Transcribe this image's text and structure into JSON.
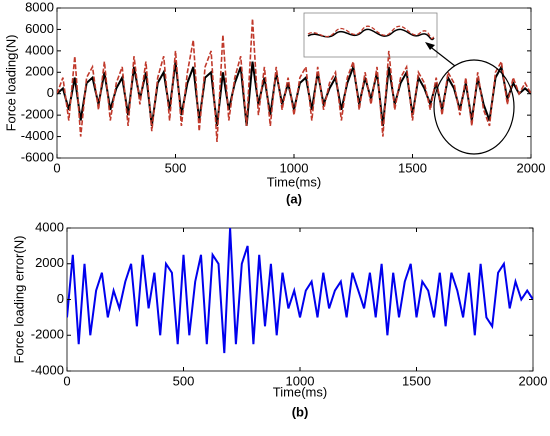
{
  "chart_data": [
    {
      "type": "line",
      "caption": "(a)",
      "xlabel": "Time(ms)",
      "ylabel": "Force loading(N)",
      "x": [
        0,
        25,
        50,
        75,
        100,
        125,
        150,
        175,
        200,
        225,
        250,
        275,
        300,
        325,
        350,
        375,
        400,
        425,
        450,
        475,
        500,
        525,
        550,
        575,
        600,
        625,
        650,
        675,
        700,
        725,
        750,
        775,
        800,
        825,
        850,
        875,
        900,
        925,
        950,
        975,
        1000,
        1025,
        1050,
        1075,
        1100,
        1125,
        1150,
        1175,
        1200,
        1225,
        1250,
        1275,
        1300,
        1325,
        1350,
        1375,
        1400,
        1425,
        1450,
        1475,
        1500,
        1525,
        1550,
        1575,
        1600,
        1625,
        1650,
        1675,
        1700,
        1725,
        1750,
        1775,
        1800,
        1825,
        1850,
        1875,
        1900,
        1925,
        1950,
        1975,
        2000
      ],
      "series": [
        {
          "color": "#000000",
          "style": "solid",
          "values": [
            0,
            500,
            -1500,
            1500,
            -2500,
            1000,
            1500,
            -1000,
            2000,
            -1500,
            500,
            1500,
            -2000,
            2500,
            -500,
            2000,
            -3000,
            1000,
            2000,
            -1500,
            3000,
            -2000,
            1000,
            2500,
            -2500,
            1500,
            2000,
            -3000,
            2000,
            -1500,
            1000,
            2500,
            -3000,
            3000,
            -1000,
            1500,
            -2000,
            2000,
            -1000,
            1000,
            -1500,
            1000,
            1500,
            -1500,
            2000,
            -1000,
            500,
            1500,
            -1500,
            1000,
            2500,
            -1000,
            1500,
            -500,
            2000,
            -3000,
            2500,
            -1000,
            1000,
            2000,
            -2000,
            1500,
            500,
            -1000,
            1000,
            -1500,
            1500,
            500,
            -1500,
            1000,
            -2500,
            1500,
            -1000,
            -2500,
            1500,
            2500,
            -500,
            1000,
            0,
            500,
            0
          ]
        },
        {
          "color": "#c0392b",
          "style": "dashed",
          "values": [
            0,
            1500,
            -2500,
            3500,
            -4000,
            1500,
            2500,
            -1500,
            3000,
            -2500,
            1000,
            2500,
            -3000,
            3500,
            -1000,
            3000,
            -3500,
            1500,
            3500,
            -2500,
            4000,
            -3000,
            2000,
            5000,
            -3500,
            2500,
            4000,
            -4500,
            5500,
            -2500,
            1500,
            3500,
            -3000,
            7000,
            -2000,
            2500,
            -3000,
            2500,
            -1500,
            1500,
            -2000,
            1500,
            2500,
            -2500,
            2500,
            -1500,
            1000,
            2000,
            -2500,
            1500,
            3000,
            -1500,
            2000,
            -1000,
            2500,
            -4000,
            4000,
            -1500,
            1500,
            2500,
            -2500,
            2000,
            1000,
            -1500,
            1500,
            -2000,
            2000,
            1000,
            -2000,
            1500,
            -3000,
            2000,
            -1500,
            -3000,
            2000,
            3000,
            -1000,
            1500,
            0,
            1000,
            0
          ]
        }
      ],
      "xlim": [
        0,
        2000
      ],
      "xticks": [
        0,
        500,
        1000,
        1500,
        2000
      ],
      "ylim": [
        -6000,
        8000
      ],
      "yticks": [
        -6000,
        -4000,
        -2000,
        0,
        2000,
        4000,
        6000,
        8000
      ]
    },
    {
      "type": "line",
      "caption": "(b)",
      "xlabel": "Time(ms)",
      "ylabel": "Force loading error(N)",
      "x": [
        0,
        25,
        50,
        75,
        100,
        125,
        150,
        175,
        200,
        225,
        250,
        275,
        300,
        325,
        350,
        375,
        400,
        425,
        450,
        475,
        500,
        525,
        550,
        575,
        600,
        625,
        650,
        675,
        700,
        725,
        750,
        775,
        800,
        825,
        850,
        875,
        900,
        925,
        950,
        975,
        1000,
        1025,
        1050,
        1075,
        1100,
        1125,
        1150,
        1175,
        1200,
        1225,
        1250,
        1275,
        1300,
        1325,
        1350,
        1375,
        1400,
        1425,
        1450,
        1475,
        1500,
        1525,
        1550,
        1575,
        1600,
        1625,
        1650,
        1675,
        1700,
        1725,
        1750,
        1775,
        1800,
        1825,
        1850,
        1875,
        1900,
        1925,
        1950,
        1975,
        2000
      ],
      "series": [
        {
          "color": "#0000ee",
          "style": "solid",
          "values": [
            -1000,
            2500,
            -2500,
            2000,
            -2000,
            500,
            1500,
            -1000,
            500,
            -500,
            1000,
            2000,
            -1500,
            2500,
            -500,
            1500,
            -2000,
            2000,
            1500,
            -2500,
            2500,
            -2000,
            1000,
            2500,
            -2500,
            2500,
            2000,
            -3000,
            4000,
            -2500,
            2000,
            3000,
            -2500,
            2500,
            -1500,
            2000,
            -2000,
            1500,
            -500,
            500,
            -1000,
            500,
            1000,
            -1000,
            1500,
            -500,
            500,
            1000,
            -1000,
            1500,
            500,
            -500,
            1500,
            -1000,
            2000,
            -2000,
            1500,
            -1000,
            1000,
            2000,
            -1000,
            1000,
            500,
            -1000,
            1500,
            -1500,
            1500,
            500,
            -1000,
            1500,
            -2000,
            2000,
            -1000,
            -1500,
            1500,
            2000,
            -500,
            1000,
            0,
            500,
            0
          ]
        }
      ],
      "xlim": [
        0,
        2000
      ],
      "xticks": [
        0,
        500,
        1000,
        1500,
        2000
      ],
      "ylim": [
        -4000,
        4000
      ],
      "yticks": [
        -4000,
        -2000,
        0,
        2000,
        4000
      ]
    }
  ]
}
